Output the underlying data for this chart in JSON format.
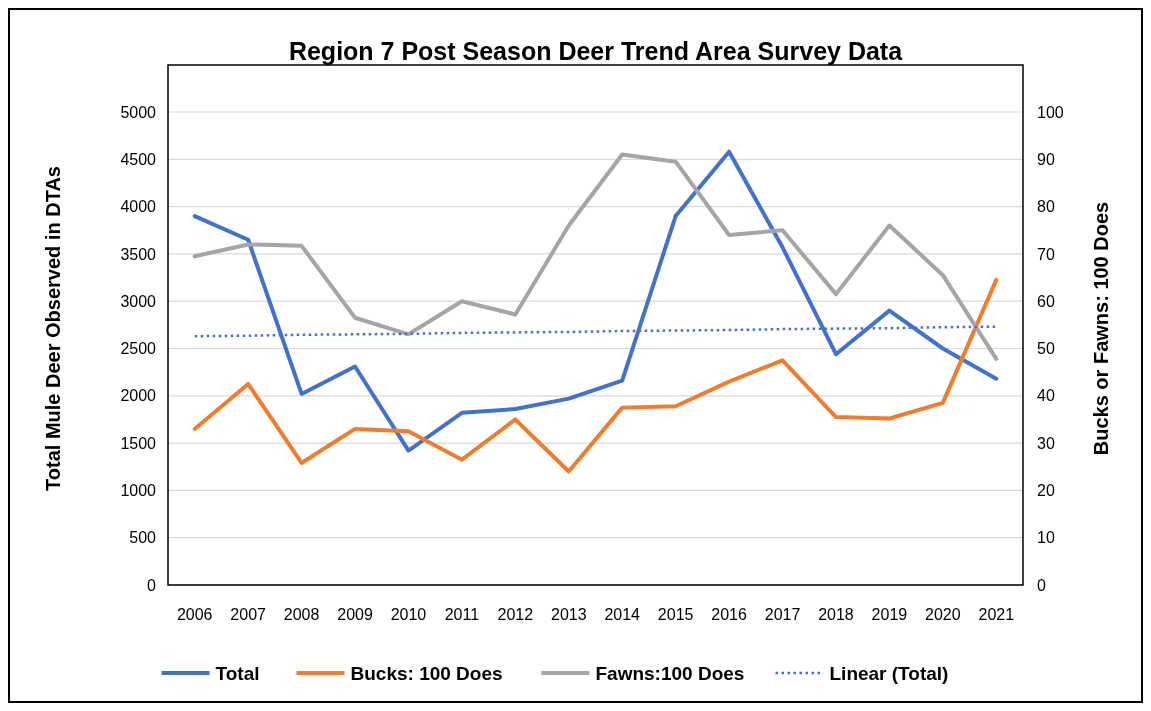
{
  "chart_data": {
    "type": "line",
    "title": "Region 7 Post Season Deer Trend Area Survey Data",
    "ylabel": "Total Mule Deer Observed in DTAs",
    "y2label": "Bucks or Fawns: 100 Does",
    "categories": [
      "2006",
      "2007",
      "2008",
      "2009",
      "2010",
      "2011",
      "2012",
      "2013",
      "2014",
      "2015",
      "2016",
      "2017",
      "2018",
      "2019",
      "2020",
      "2021"
    ],
    "series": [
      {
        "name": "Total",
        "color": "#4472c4",
        "values": [
          3900,
          3650,
          2020,
          2310,
          1420,
          1820,
          1860,
          1970,
          2160,
          3900,
          4580,
          3570,
          2440,
          2900,
          2500,
          2180
        ]
      },
      {
        "name": "Bucks: 100 Does",
        "color": "#ed7d31",
        "axis": "y2",
        "values": [
          33,
          42.5,
          25.8,
          33,
          32.5,
          26.5,
          35,
          24,
          37.5,
          37.8,
          43,
          47.5,
          35.5,
          35.2,
          38.5,
          64.5
        ]
      },
      {
        "name": "Fawns:100 Does",
        "color": "#a5a5a5",
        "axis": "y2",
        "values": [
          69.5,
          72,
          71.7,
          56.5,
          53,
          60,
          57.2,
          76,
          91,
          89.5,
          74,
          75,
          61.5,
          76,
          65.5,
          47.8
        ]
      },
      {
        "name": "Linear (Total)",
        "color": "#4472c4",
        "line_style": "dotted",
        "values": [
          2630,
          2635,
          2645,
          2650,
          2655,
          2665,
          2670,
          2675,
          2685,
          2690,
          2695,
          2705,
          2710,
          2715,
          2725,
          2730
        ]
      }
    ],
    "ylim": [
      0,
      5000
    ],
    "yticks": [
      0,
      500,
      1000,
      1500,
      2000,
      2500,
      3000,
      3500,
      4000,
      4500,
      5000
    ],
    "y2lim": [
      0,
      100
    ],
    "y2ticks": [
      0,
      10,
      20,
      30,
      40,
      50,
      60,
      70,
      80,
      90,
      100
    ],
    "grid": "y",
    "legend": "bottom",
    "marker": "none",
    "line_style": "solid"
  }
}
